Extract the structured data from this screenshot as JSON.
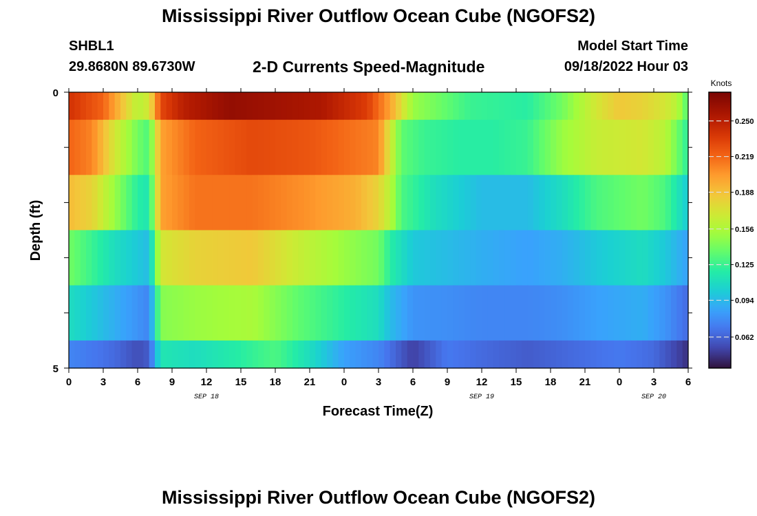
{
  "header": {
    "title": "Mississippi River Outflow Ocean Cube (NGOFS2)",
    "station_id": "SHBL1",
    "station_coords": "29.8680N  89.6730W",
    "subtitle": "2-D Currents Speed-Magnitude",
    "model_start_label": "Model Start Time",
    "model_start_value": "09/18/2022 Hour 03"
  },
  "second_panel": {
    "title": "Mississippi River Outflow Ocean Cube (NGOFS2)"
  },
  "chart_data": {
    "type": "heatmap",
    "xlabel": "Forecast Time(Z)",
    "ylabel": "Depth (ft)",
    "colorbar_label": "Knots",
    "colorbar_ticks": [
      "0.250",
      "0.219",
      "0.188",
      "0.156",
      "0.125",
      "0.094",
      "0.062"
    ],
    "colorbar_values": [
      0.25,
      0.219,
      0.188,
      0.156,
      0.125,
      0.094,
      0.062
    ],
    "colorbar_range": [
      0.035,
      0.275
    ],
    "x_range": [
      0,
      54
    ],
    "x_ticks": [
      0,
      3,
      6,
      9,
      12,
      15,
      18,
      21,
      24,
      27,
      30,
      33,
      36,
      39,
      42,
      45,
      48,
      51,
      54
    ],
    "x_tick_labels": [
      "0",
      "3",
      "6",
      "9",
      "12",
      "15",
      "18",
      "21",
      "0",
      "3",
      "6",
      "9",
      "12",
      "15",
      "18",
      "21",
      "0",
      "3",
      "6"
    ],
    "date_labels": [
      {
        "hour": 12,
        "text": "SEP 18"
      },
      {
        "hour": 36,
        "text": "SEP 19"
      },
      {
        "hour": 51,
        "text": "SEP 20"
      }
    ],
    "y_range": [
      0,
      5
    ],
    "y_tick_labels": [
      "0",
      "5"
    ],
    "y_edges": [
      0,
      0.5,
      1.5,
      2.5,
      3.5,
      4.5,
      5
    ],
    "row_keypoints": [
      [
        [
          0,
          0.24
        ],
        [
          3,
          0.22
        ],
        [
          5,
          0.18
        ],
        [
          6,
          0.16
        ],
        [
          7,
          0.17
        ],
        [
          8,
          0.23
        ],
        [
          10,
          0.25
        ],
        [
          14,
          0.265
        ],
        [
          18,
          0.26
        ],
        [
          22,
          0.255
        ],
        [
          26,
          0.235
        ],
        [
          28,
          0.2
        ],
        [
          30,
          0.15
        ],
        [
          32,
          0.14
        ],
        [
          35,
          0.125
        ],
        [
          40,
          0.12
        ],
        [
          43,
          0.14
        ],
        [
          46,
          0.17
        ],
        [
          48,
          0.185
        ],
        [
          50,
          0.18
        ],
        [
          52,
          0.17
        ],
        [
          53,
          0.16
        ],
        [
          54,
          0.13
        ]
      ],
      [
        [
          0,
          0.22
        ],
        [
          2,
          0.21
        ],
        [
          4,
          0.17
        ],
        [
          6,
          0.14
        ],
        [
          7,
          0.13
        ],
        [
          8,
          0.2
        ],
        [
          11,
          0.22
        ],
        [
          16,
          0.23
        ],
        [
          21,
          0.225
        ],
        [
          25,
          0.215
        ],
        [
          27,
          0.21
        ],
        [
          28,
          0.17
        ],
        [
          29,
          0.135
        ],
        [
          31,
          0.125
        ],
        [
          34,
          0.12
        ],
        [
          37,
          0.12
        ],
        [
          40,
          0.125
        ],
        [
          43,
          0.15
        ],
        [
          46,
          0.165
        ],
        [
          50,
          0.17
        ],
        [
          52,
          0.16
        ],
        [
          53,
          0.14
        ],
        [
          54,
          0.12
        ]
      ],
      [
        [
          0,
          0.19
        ],
        [
          2,
          0.18
        ],
        [
          4,
          0.15
        ],
        [
          6,
          0.12
        ],
        [
          7,
          0.115
        ],
        [
          8,
          0.2
        ],
        [
          11,
          0.215
        ],
        [
          16,
          0.215
        ],
        [
          21,
          0.205
        ],
        [
          25,
          0.195
        ],
        [
          27,
          0.18
        ],
        [
          28,
          0.16
        ],
        [
          29,
          0.13
        ],
        [
          32,
          0.11
        ],
        [
          36,
          0.095
        ],
        [
          40,
          0.095
        ],
        [
          43,
          0.11
        ],
        [
          46,
          0.13
        ],
        [
          50,
          0.14
        ],
        [
          52,
          0.13
        ],
        [
          54,
          0.1
        ]
      ],
      [
        [
          0,
          0.14
        ],
        [
          2,
          0.125
        ],
        [
          4,
          0.11
        ],
        [
          6,
          0.1
        ],
        [
          7,
          0.095
        ],
        [
          8,
          0.17
        ],
        [
          11,
          0.18
        ],
        [
          16,
          0.185
        ],
        [
          20,
          0.165
        ],
        [
          24,
          0.15
        ],
        [
          27,
          0.14
        ],
        [
          28,
          0.12
        ],
        [
          30,
          0.1
        ],
        [
          33,
          0.095
        ],
        [
          36,
          0.09
        ],
        [
          40,
          0.085
        ],
        [
          43,
          0.09
        ],
        [
          46,
          0.1
        ],
        [
          50,
          0.11
        ],
        [
          52,
          0.1
        ],
        [
          54,
          0.085
        ]
      ],
      [
        [
          0,
          0.11
        ],
        [
          2,
          0.1
        ],
        [
          4,
          0.09
        ],
        [
          6,
          0.08
        ],
        [
          7,
          0.075
        ],
        [
          8,
          0.145
        ],
        [
          11,
          0.15
        ],
        [
          16,
          0.155
        ],
        [
          20,
          0.135
        ],
        [
          24,
          0.12
        ],
        [
          27,
          0.11
        ],
        [
          28,
          0.095
        ],
        [
          30,
          0.08
        ],
        [
          33,
          0.078
        ],
        [
          36,
          0.075
        ],
        [
          40,
          0.075
        ],
        [
          43,
          0.078
        ],
        [
          46,
          0.085
        ],
        [
          50,
          0.09
        ],
        [
          52,
          0.08
        ],
        [
          54,
          0.065
        ]
      ],
      [
        [
          0,
          0.075
        ],
        [
          2,
          0.07
        ],
        [
          4,
          0.065
        ],
        [
          6,
          0.055
        ],
        [
          7,
          0.06
        ],
        [
          8,
          0.115
        ],
        [
          11,
          0.11
        ],
        [
          15,
          0.12
        ],
        [
          18,
          0.13
        ],
        [
          21,
          0.11
        ],
        [
          24,
          0.085
        ],
        [
          27,
          0.075
        ],
        [
          30,
          0.05
        ],
        [
          33,
          0.07
        ],
        [
          36,
          0.065
        ],
        [
          40,
          0.06
        ],
        [
          44,
          0.065
        ],
        [
          48,
          0.07
        ],
        [
          51,
          0.065
        ],
        [
          54,
          0.045
        ]
      ]
    ]
  }
}
